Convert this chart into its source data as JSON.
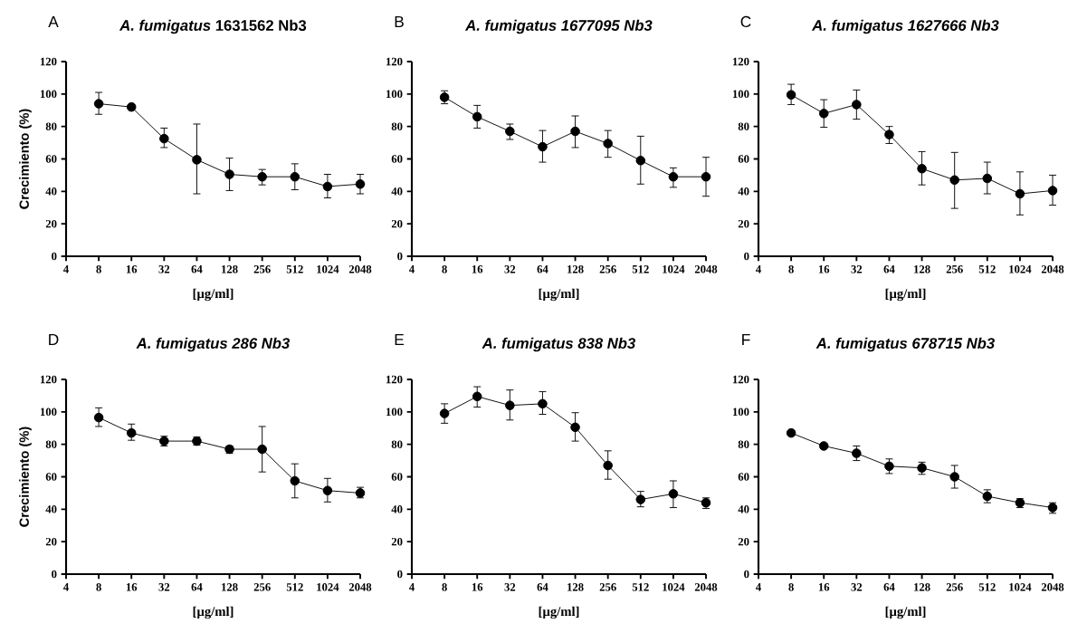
{
  "chart_data": [
    {
      "type": "line",
      "title": "*A. fumigatus* 1631562 Nb3",
      "ylabel": "Crecimiento (%)",
      "xlabel": "[µg/ml]",
      "annotations": [
        "A"
      ],
      "color": "#000000",
      "marker": "circle",
      "log": "x",
      "x": [
        8,
        16,
        32,
        64,
        128,
        256,
        512,
        1024,
        2048
      ],
      "values": [
        94,
        92,
        72.5,
        59.5,
        50.5,
        49,
        49,
        43,
        44.5
      ],
      "errors": [
        [
          87.5,
          101
        ],
        null,
        [
          67,
          79
        ],
        [
          38.5,
          81.5
        ],
        [
          40.5,
          60.5
        ],
        [
          44,
          53.5
        ],
        [
          41,
          57
        ],
        [
          36,
          50.5
        ],
        [
          38.5,
          50.5
        ]
      ],
      "xlim": [
        4,
        2048
      ],
      "ylim": [
        0,
        120
      ],
      "xticks": [
        4,
        8,
        16,
        32,
        64,
        128,
        256,
        512,
        1024,
        2048
      ],
      "yticks": [
        0,
        20,
        40,
        60,
        80,
        100,
        120
      ]
    },
    {
      "type": "line",
      "title": "*A. fumigatus 1677095 Nb3*",
      "xlabel": "[µg/ml]",
      "annotations": [
        "B"
      ],
      "color": "#000000",
      "marker": "circle",
      "log": "x",
      "x": [
        8,
        16,
        32,
        64,
        128,
        256,
        512,
        1024,
        2048
      ],
      "values": [
        98,
        86,
        77,
        67.5,
        77,
        69.5,
        59,
        49,
        49
      ],
      "errors": [
        [
          94,
          102
        ],
        [
          79,
          93
        ],
        [
          72,
          81.5
        ],
        [
          58,
          77.5
        ],
        [
          67,
          86.5
        ],
        [
          61,
          77.5
        ],
        [
          44.5,
          74
        ],
        [
          42.5,
          54.5
        ],
        [
          37,
          61
        ]
      ],
      "xlim": [
        4,
        2048
      ],
      "ylim": [
        0,
        120
      ],
      "xticks": [
        4,
        8,
        16,
        32,
        64,
        128,
        256,
        512,
        1024,
        2048
      ],
      "yticks": [
        0,
        20,
        40,
        60,
        80,
        100,
        120
      ]
    },
    {
      "type": "line",
      "title": "*A. fumigatus 1627666 Nb3*",
      "xlabel": "[µg/ml]",
      "annotations": [
        "C"
      ],
      "color": "#000000",
      "marker": "circle",
      "log": "x",
      "x": [
        8,
        16,
        32,
        64,
        128,
        256,
        512,
        1024,
        2048
      ],
      "values": [
        99.5,
        88,
        93.5,
        75,
        54,
        47,
        48,
        38.5,
        40.5
      ],
      "errors": [
        [
          93.5,
          106
        ],
        [
          79.5,
          96.5
        ],
        [
          84.5,
          102.5
        ],
        [
          69.5,
          80
        ],
        [
          44,
          64.5
        ],
        [
          29.5,
          64
        ],
        [
          38.5,
          58
        ],
        [
          25.5,
          52
        ],
        [
          31.5,
          50
        ]
      ],
      "xlim": [
        4,
        2048
      ],
      "ylim": [
        0,
        120
      ],
      "xticks": [
        4,
        8,
        16,
        32,
        64,
        128,
        256,
        512,
        1024,
        2048
      ],
      "yticks": [
        0,
        20,
        40,
        60,
        80,
        100,
        120
      ]
    },
    {
      "type": "line",
      "title": "*A. fumigatus 286 Nb3*",
      "ylabel": "Crecimiento (%)",
      "xlabel": "[µg/ml]",
      "annotations": [
        "D"
      ],
      "color": "#000000",
      "marker": "circle",
      "log": "x",
      "x": [
        8,
        16,
        32,
        64,
        128,
        256,
        512,
        1024,
        2048
      ],
      "values": [
        96.5,
        87,
        82,
        82,
        77,
        77,
        57.5,
        51.5,
        50
      ],
      "errors": [
        [
          91,
          102.5
        ],
        [
          82.5,
          92.5
        ],
        [
          79,
          85
        ],
        [
          79.5,
          84.5
        ],
        [
          74.5,
          79
        ],
        [
          63,
          91
        ],
        [
          47,
          68
        ],
        [
          44.5,
          59
        ],
        [
          47,
          53.5
        ]
      ],
      "xlim": [
        4,
        2048
      ],
      "ylim": [
        0,
        120
      ],
      "xticks": [
        4,
        8,
        16,
        32,
        64,
        128,
        256,
        512,
        1024,
        2048
      ],
      "yticks": [
        0,
        20,
        40,
        60,
        80,
        100,
        120
      ]
    },
    {
      "type": "line",
      "title": "*A. fumigatus 838 Nb3*",
      "xlabel": "[µg/ml]",
      "annotations": [
        "E"
      ],
      "color": "#000000",
      "marker": "circle",
      "log": "x",
      "x": [
        8,
        16,
        32,
        64,
        128,
        256,
        512,
        1024,
        2048
      ],
      "values": [
        99,
        109.5,
        104,
        105,
        90.5,
        67,
        46,
        49.5,
        44
      ],
      "errors": [
        [
          93,
          105
        ],
        [
          103,
          115.5
        ],
        [
          95,
          113.5
        ],
        [
          98.5,
          112.5
        ],
        [
          82,
          99.5
        ],
        [
          58.5,
          76
        ],
        [
          41.5,
          51
        ],
        [
          41,
          57.5
        ],
        [
          40.5,
          47
        ]
      ],
      "xlim": [
        4,
        2048
      ],
      "ylim": [
        0,
        120
      ],
      "xticks": [
        4,
        8,
        16,
        32,
        64,
        128,
        256,
        512,
        1024,
        2048
      ],
      "yticks": [
        0,
        20,
        40,
        60,
        80,
        100,
        120
      ]
    },
    {
      "type": "line",
      "title": "*A. fumigatus 678715 Nb3*",
      "xlabel": "[µg/ml]",
      "annotations": [
        "F"
      ],
      "color": "#000000",
      "marker": "circle",
      "log": "x",
      "x": [
        8,
        16,
        32,
        64,
        128,
        256,
        512,
        1024,
        2048
      ],
      "values": [
        87,
        79,
        74.5,
        66.5,
        65.5,
        60,
        48,
        44,
        41
      ],
      "errors": [
        null,
        null,
        [
          70,
          79
        ],
        [
          62,
          71
        ],
        [
          61.5,
          69
        ],
        [
          53,
          67
        ],
        [
          44,
          52
        ],
        [
          41,
          46.5
        ],
        [
          37.5,
          44
        ]
      ],
      "xlim": [
        4,
        2048
      ],
      "ylim": [
        0,
        120
      ],
      "xticks": [
        4,
        8,
        16,
        32,
        64,
        128,
        256,
        512,
        1024,
        2048
      ],
      "yticks": [
        0,
        20,
        40,
        60,
        80,
        100,
        120
      ]
    }
  ]
}
